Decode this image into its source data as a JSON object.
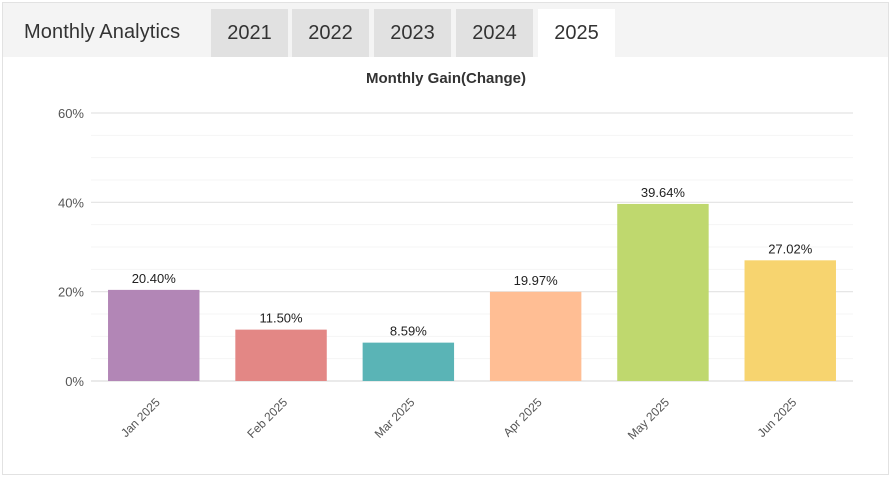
{
  "header": {
    "title": "Monthly Analytics",
    "tabs": [
      {
        "label": "2021",
        "active": false
      },
      {
        "label": "2022",
        "active": false
      },
      {
        "label": "2023",
        "active": false
      },
      {
        "label": "2024",
        "active": false
      },
      {
        "label": "2025",
        "active": true
      }
    ]
  },
  "chart_data": {
    "type": "bar",
    "title": "Monthly Gain(Change)",
    "xlabel": "",
    "ylabel": "",
    "categories": [
      "Jan 2025",
      "Feb 2025",
      "Mar 2025",
      "Apr 2025",
      "May 2025",
      "Jun 2025"
    ],
    "values": [
      20.4,
      11.5,
      8.59,
      19.97,
      39.64,
      27.02
    ],
    "value_labels": [
      "20.40%",
      "11.50%",
      "8.59%",
      "19.97%",
      "39.64%",
      "27.02%"
    ],
    "colors": [
      "#b286b6",
      "#e38785",
      "#5ab4b6",
      "#ffbe94",
      "#bfd86e",
      "#f7d46f"
    ],
    "ylim": [
      0,
      60
    ],
    "yticks": [
      0,
      20,
      40,
      60
    ],
    "ytick_labels": [
      "0%",
      "20%",
      "40%",
      "60%"
    ],
    "grid": true,
    "legend": "none"
  }
}
